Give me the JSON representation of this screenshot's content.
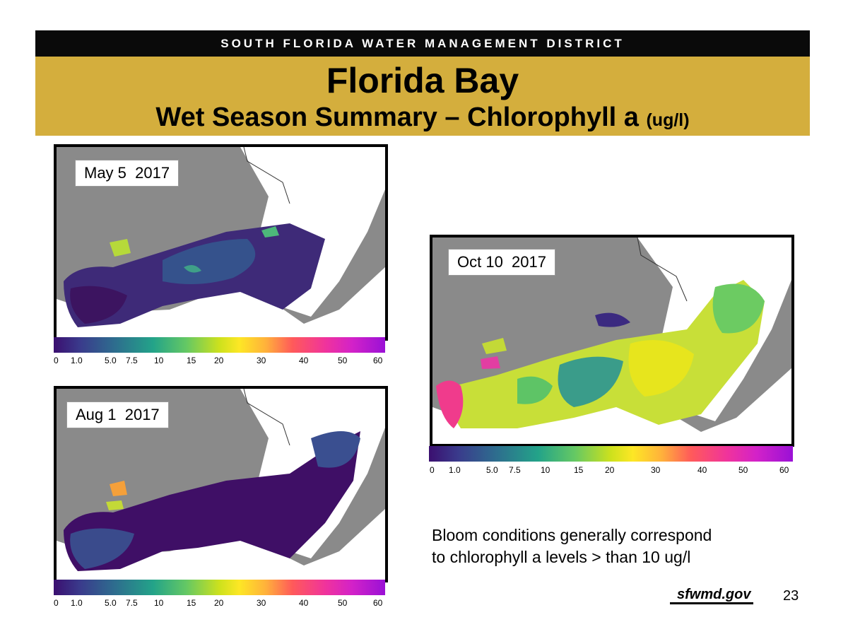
{
  "header": {
    "org": "SOUTH FLORIDA WATER MANAGEMENT DISTRICT",
    "title": "Florida Bay",
    "subtitle_main": "Wet Season Summary – Chlorophyll a",
    "subtitle_unit": "(ug/l)"
  },
  "colors": {
    "topbar": "#0a0a0a",
    "title_band": "#d4ae3d",
    "land": "#8a8a8a"
  },
  "maps": [
    {
      "date": "May 5  2017",
      "dominant": "low (dark purple/blue)"
    },
    {
      "date": "Aug 1  2017",
      "dominant": "low (dark purple)"
    },
    {
      "date": "Oct 10  2017",
      "dominant": "elevated (green/yellow/pink)"
    }
  ],
  "colorbar": {
    "ticks": [
      "0",
      "1.0",
      "5.0",
      "7.5",
      "10",
      "15",
      "20",
      "30",
      "40",
      "50",
      "60"
    ]
  },
  "note": {
    "line1": "Bloom conditions generally correspond",
    "line2": "to chlorophyll a levels > than 10 ug/l"
  },
  "footer": {
    "logo": "sfwmd.gov",
    "page": "23"
  }
}
